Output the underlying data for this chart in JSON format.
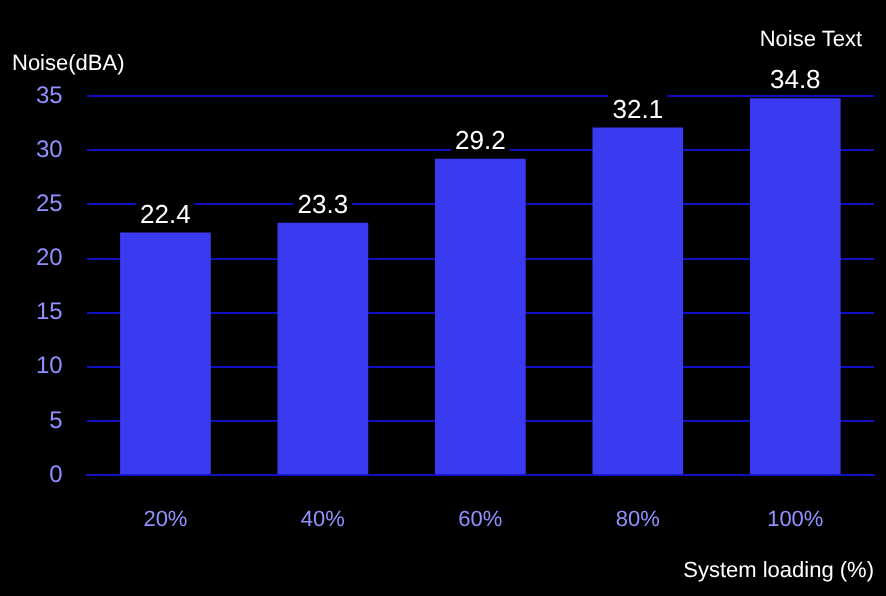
{
  "chart_data": {
    "type": "bar",
    "ylabel": "Noise(dBA)",
    "xlabel": "System loading (%)",
    "annotations": [
      "Noise Text"
    ],
    "categories": [
      "20%",
      "40%",
      "60%",
      "80%",
      "100%"
    ],
    "series": [
      {
        "color": "#3a3af0",
        "values": [
          22.4,
          23.3,
          29.2,
          32.1,
          34.8
        ]
      }
    ],
    "ylim": [
      0,
      35
    ],
    "yticks": [
      0,
      5,
      10,
      15,
      20,
      25,
      30,
      35
    ],
    "grid": "y",
    "data_labels": true
  }
}
